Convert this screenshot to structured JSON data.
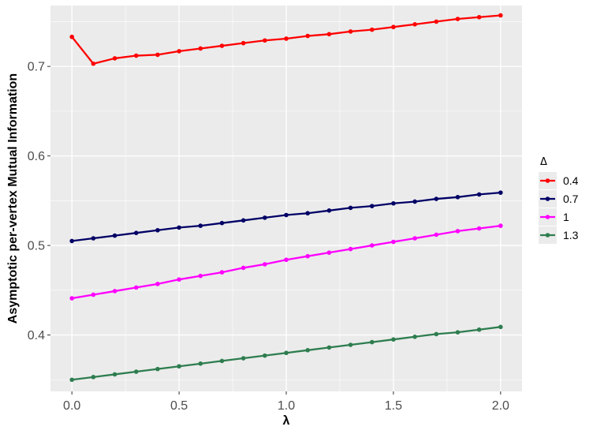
{
  "chart_data": {
    "type": "line",
    "xlabel": "λ",
    "ylabel": "Asymptotic per-vertex Mutual Information",
    "xlim": [
      -0.1,
      2.1
    ],
    "ylim": [
      0.337,
      0.768
    ],
    "x_ticks": [
      "0.0",
      "0.5",
      "1.0",
      "1.5",
      "2.0"
    ],
    "y_ticks": [
      "0.4",
      "0.5",
      "0.6",
      "0.7"
    ],
    "x_tick_values": [
      0,
      0.5,
      1.0,
      1.5,
      2.0
    ],
    "y_tick_values": [
      0.4,
      0.5,
      0.6,
      0.7
    ],
    "grid": true,
    "legend": {
      "title": "Δ",
      "placement": "right"
    },
    "x": [
      0,
      0.1,
      0.2,
      0.3,
      0.4,
      0.5,
      0.6,
      0.7,
      0.8,
      0.9,
      1.0,
      1.1,
      1.2,
      1.3,
      1.4,
      1.5,
      1.6,
      1.7,
      1.8,
      1.9,
      2.0
    ],
    "series": [
      {
        "name": "0.4",
        "color": "#ff0000",
        "values": [
          0.733,
          0.703,
          0.709,
          0.712,
          0.713,
          0.717,
          0.72,
          0.723,
          0.726,
          0.729,
          0.731,
          0.734,
          0.736,
          0.739,
          0.741,
          0.744,
          0.747,
          0.75,
          0.753,
          0.755,
          0.757
        ]
      },
      {
        "name": "0.7",
        "color": "#000066",
        "values": [
          0.505,
          0.508,
          0.511,
          0.514,
          0.517,
          0.52,
          0.522,
          0.525,
          0.528,
          0.531,
          0.534,
          0.536,
          0.539,
          0.542,
          0.544,
          0.547,
          0.549,
          0.552,
          0.554,
          0.557,
          0.559
        ]
      },
      {
        "name": "1",
        "color": "#ff00ff",
        "values": [
          0.441,
          0.445,
          0.449,
          0.453,
          0.457,
          0.462,
          0.466,
          0.47,
          0.475,
          0.479,
          0.484,
          0.488,
          0.492,
          0.496,
          0.5,
          0.504,
          0.508,
          0.512,
          0.516,
          0.519,
          0.522
        ]
      },
      {
        "name": "1.3",
        "color": "#2e7d4f",
        "values": [
          0.35,
          0.353,
          0.356,
          0.359,
          0.362,
          0.365,
          0.368,
          0.371,
          0.374,
          0.377,
          0.38,
          0.383,
          0.386,
          0.389,
          0.392,
          0.395,
          0.398,
          0.401,
          0.403,
          0.406,
          0.409
        ]
      }
    ]
  }
}
